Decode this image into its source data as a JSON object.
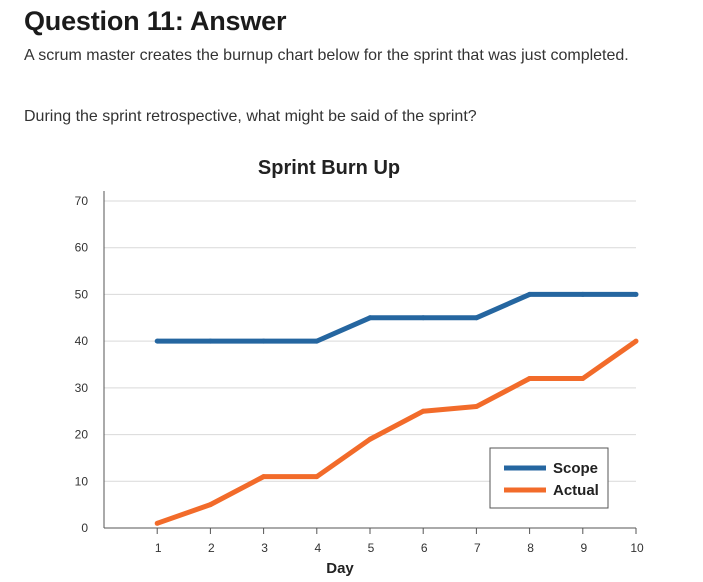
{
  "page": {
    "title": "Question 11: Answer",
    "body": "A scrum master creates the burnup chart below for the sprint that was just completed.",
    "prompt": "During the sprint retrospective, what might be said of the sprint?"
  },
  "chart_data": {
    "type": "line",
    "title": "Sprint Burn Up",
    "xlabel": "Day",
    "ylabel": "",
    "x": [
      1,
      2,
      3,
      4,
      5,
      6,
      7,
      8,
      9,
      10
    ],
    "xlim": [
      0,
      10
    ],
    "ylim": [
      0,
      70
    ],
    "yticks": [
      0,
      10,
      20,
      30,
      40,
      50,
      60,
      70
    ],
    "xticks": [
      1,
      2,
      3,
      4,
      5,
      6,
      7,
      8,
      9,
      10
    ],
    "grid": true,
    "legend_position": "bottom-right",
    "series": [
      {
        "name": "Scope",
        "color": "#2566a0",
        "values": [
          40,
          40,
          40,
          40,
          45,
          45,
          45,
          50,
          50,
          50
        ]
      },
      {
        "name": "Actual",
        "color": "#f26b2a",
        "values": [
          1,
          5,
          11,
          11,
          19,
          25,
          26,
          32,
          32,
          40
        ]
      }
    ]
  }
}
